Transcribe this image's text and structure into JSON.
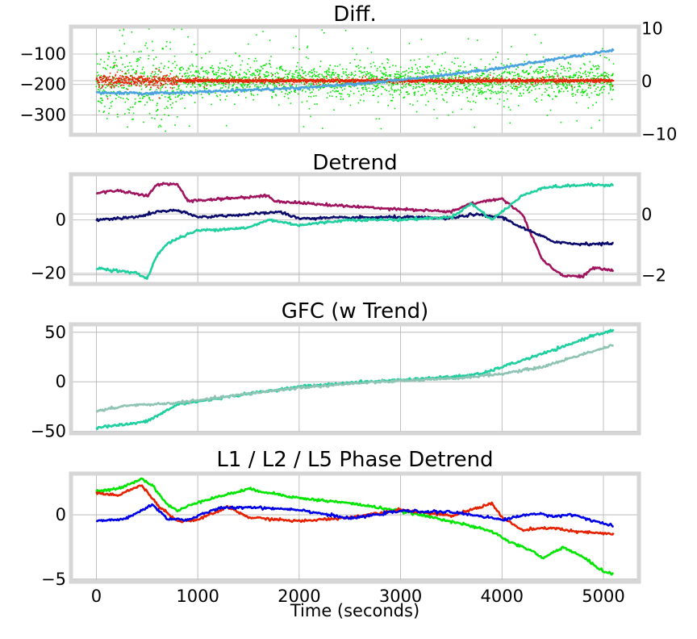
{
  "figure": {
    "xlabel": "Time (seconds)",
    "x_ticks": [
      0,
      1000,
      2000,
      3000,
      4000,
      5000
    ],
    "xlim": [
      -250,
      5350
    ]
  },
  "colors": {
    "frame": "#d6d6d6",
    "grid": "#b0b0b0",
    "green": "#00e600",
    "red": "#e62200",
    "blue": "#0000e6",
    "lightblue": "#4aa3df",
    "navy": "#0b0b6e",
    "maroon": "#a0135e",
    "teal": "#1fcf9f",
    "sage": "#8fc4b4"
  },
  "chart_data": [
    {
      "type": "scatter",
      "title": "Diff.",
      "ylim": [
        -365,
        -10
      ],
      "y_ticks": [
        -100,
        -200,
        -300
      ],
      "y2lim": [
        -10.2,
        10.2
      ],
      "y2_ticks": [
        10,
        0,
        -10
      ],
      "series": [
        {
          "name": "green-scatter",
          "color": "green",
          "kind": "noise",
          "axis": "right",
          "center": 0,
          "spread_early": 6.0,
          "spread_late": 2.6,
          "transition": 800
        },
        {
          "name": "red-scatter",
          "color": "red",
          "kind": "noise",
          "axis": "right",
          "center": 0,
          "spread_early": 0.9,
          "spread_late": 0.25,
          "transition": 800
        },
        {
          "name": "blue-trend",
          "color": "lightblue",
          "kind": "line",
          "axis": "left",
          "points": [
            [
              0,
              -228
            ],
            [
              500,
              -229
            ],
            [
              1000,
              -225
            ],
            [
              1500,
              -218
            ],
            [
              2000,
              -212
            ],
            [
              2500,
              -200
            ],
            [
              3000,
              -185
            ],
            [
              3500,
              -166
            ],
            [
              4000,
              -145
            ],
            [
              4500,
              -118
            ],
            [
              5100,
              -87
            ]
          ]
        }
      ]
    },
    {
      "type": "line",
      "title": "Detrend",
      "ylim": [
        -24,
        17
      ],
      "y_ticks": [
        0,
        -20
      ],
      "y2lim": [
        -2.3,
        1.3
      ],
      "y2_ticks": [
        0,
        -2
      ],
      "series": [
        {
          "name": "maroon",
          "color": "maroon",
          "points": [
            [
              0,
              10
            ],
            [
              200,
              11
            ],
            [
              500,
              9
            ],
            [
              600,
              13
            ],
            [
              800,
              13.5
            ],
            [
              900,
              7
            ],
            [
              1700,
              9
            ],
            [
              1750,
              7
            ],
            [
              2500,
              5
            ],
            [
              3500,
              3
            ],
            [
              3700,
              6
            ],
            [
              4000,
              8
            ],
            [
              4200,
              2
            ],
            [
              4400,
              -15
            ],
            [
              4600,
              -21
            ],
            [
              4800,
              -21
            ],
            [
              4900,
              -18
            ],
            [
              5100,
              -19
            ]
          ]
        },
        {
          "name": "navy",
          "color": "navy",
          "points": [
            [
              0,
              0
            ],
            [
              400,
              1
            ],
            [
              600,
              3
            ],
            [
              800,
              3.5
            ],
            [
              1000,
              1
            ],
            [
              1500,
              2
            ],
            [
              1800,
              3
            ],
            [
              2000,
              0.5
            ],
            [
              3000,
              1
            ],
            [
              3500,
              0.5
            ],
            [
              3700,
              2
            ],
            [
              4000,
              1
            ],
            [
              4200,
              -3
            ],
            [
              4500,
              -8
            ],
            [
              4700,
              -9
            ],
            [
              5100,
              -9
            ]
          ]
        },
        {
          "name": "teal",
          "color": "teal",
          "points": [
            [
              0,
              -18
            ],
            [
              400,
              -20
            ],
            [
              500,
              -22
            ],
            [
              600,
              -13
            ],
            [
              700,
              -9
            ],
            [
              800,
              -7
            ],
            [
              1000,
              -4
            ],
            [
              1500,
              -3
            ],
            [
              1700,
              0
            ],
            [
              2000,
              -2
            ],
            [
              2500,
              0
            ],
            [
              3000,
              0
            ],
            [
              3500,
              1
            ],
            [
              3700,
              6
            ],
            [
              3900,
              0
            ],
            [
              4000,
              3
            ],
            [
              4200,
              9
            ],
            [
              4400,
              12
            ],
            [
              4800,
              13
            ],
            [
              5100,
              13
            ]
          ]
        }
      ]
    },
    {
      "type": "line",
      "title": "GFC (w Trend)",
      "ylim": [
        -52,
        58
      ],
      "y_ticks": [
        50,
        0,
        -50
      ],
      "series": [
        {
          "name": "teal",
          "color": "teal",
          "points": [
            [
              0,
              -46
            ],
            [
              300,
              -43
            ],
            [
              500,
              -40
            ],
            [
              800,
              -23
            ],
            [
              1000,
              -20
            ],
            [
              1500,
              -12
            ],
            [
              2000,
              -5
            ],
            [
              2500,
              -1
            ],
            [
              3000,
              2
            ],
            [
              3500,
              5
            ],
            [
              3800,
              8
            ],
            [
              4000,
              15
            ],
            [
              4300,
              25
            ],
            [
              4600,
              35
            ],
            [
              4900,
              47
            ],
            [
              5100,
              52
            ]
          ]
        },
        {
          "name": "sage",
          "color": "sage",
          "points": [
            [
              0,
              -30
            ],
            [
              300,
              -24
            ],
            [
              700,
              -22
            ],
            [
              1000,
              -19
            ],
            [
              1500,
              -12
            ],
            [
              2000,
              -6
            ],
            [
              2500,
              -2
            ],
            [
              3000,
              1
            ],
            [
              3500,
              3
            ],
            [
              4000,
              8
            ],
            [
              4400,
              15
            ],
            [
              4800,
              28
            ],
            [
              5100,
              37
            ]
          ]
        }
      ]
    },
    {
      "type": "line",
      "title": "L1 / L2 / L5 Phase Detrend",
      "ylim": [
        -5.2,
        3.2
      ],
      "y_ticks": [
        0,
        -5
      ],
      "series": [
        {
          "name": "green",
          "color": "green",
          "points": [
            [
              0,
              1.8
            ],
            [
              200,
              2.0
            ],
            [
              450,
              2.8
            ],
            [
              550,
              2.3
            ],
            [
              700,
              0.8
            ],
            [
              800,
              0.3
            ],
            [
              1000,
              1.0
            ],
            [
              1300,
              1.6
            ],
            [
              1500,
              2.0
            ],
            [
              2000,
              1.3
            ],
            [
              2500,
              0.9
            ],
            [
              3000,
              0.3
            ],
            [
              3500,
              -0.5
            ],
            [
              3900,
              -1.3
            ],
            [
              4100,
              -2.2
            ],
            [
              4300,
              -2.8
            ],
            [
              4400,
              -3.4
            ],
            [
              4600,
              -2.5
            ],
            [
              4800,
              -3.3
            ],
            [
              5000,
              -4.4
            ],
            [
              5100,
              -4.6
            ]
          ]
        },
        {
          "name": "red",
          "color": "red",
          "points": [
            [
              0,
              1.7
            ],
            [
              200,
              1.5
            ],
            [
              450,
              2.3
            ],
            [
              600,
              0.8
            ],
            [
              800,
              -0.5
            ],
            [
              1000,
              -0.4
            ],
            [
              1300,
              0.6
            ],
            [
              1500,
              -0.2
            ],
            [
              2000,
              -0.5
            ],
            [
              2500,
              -0.2
            ],
            [
              3000,
              0.4
            ],
            [
              3500,
              -0.1
            ],
            [
              3900,
              0.9
            ],
            [
              4000,
              -0.2
            ],
            [
              4200,
              -1.2
            ],
            [
              4500,
              -1.0
            ],
            [
              4700,
              -1.3
            ],
            [
              5100,
              -1.5
            ]
          ]
        },
        {
          "name": "blue",
          "color": "blue",
          "points": [
            [
              0,
              -0.5
            ],
            [
              300,
              -0.3
            ],
            [
              550,
              0.8
            ],
            [
              700,
              -0.3
            ],
            [
              900,
              -0.4
            ],
            [
              1200,
              0.5
            ],
            [
              1500,
              0.6
            ],
            [
              2000,
              0.4
            ],
            [
              2500,
              -0.3
            ],
            [
              3000,
              0.3
            ],
            [
              3500,
              0.2
            ],
            [
              3800,
              -0.1
            ],
            [
              4000,
              -0.4
            ],
            [
              4300,
              0.1
            ],
            [
              4500,
              -0.1
            ],
            [
              4700,
              0.0
            ],
            [
              5100,
              -0.9
            ]
          ]
        }
      ]
    }
  ]
}
